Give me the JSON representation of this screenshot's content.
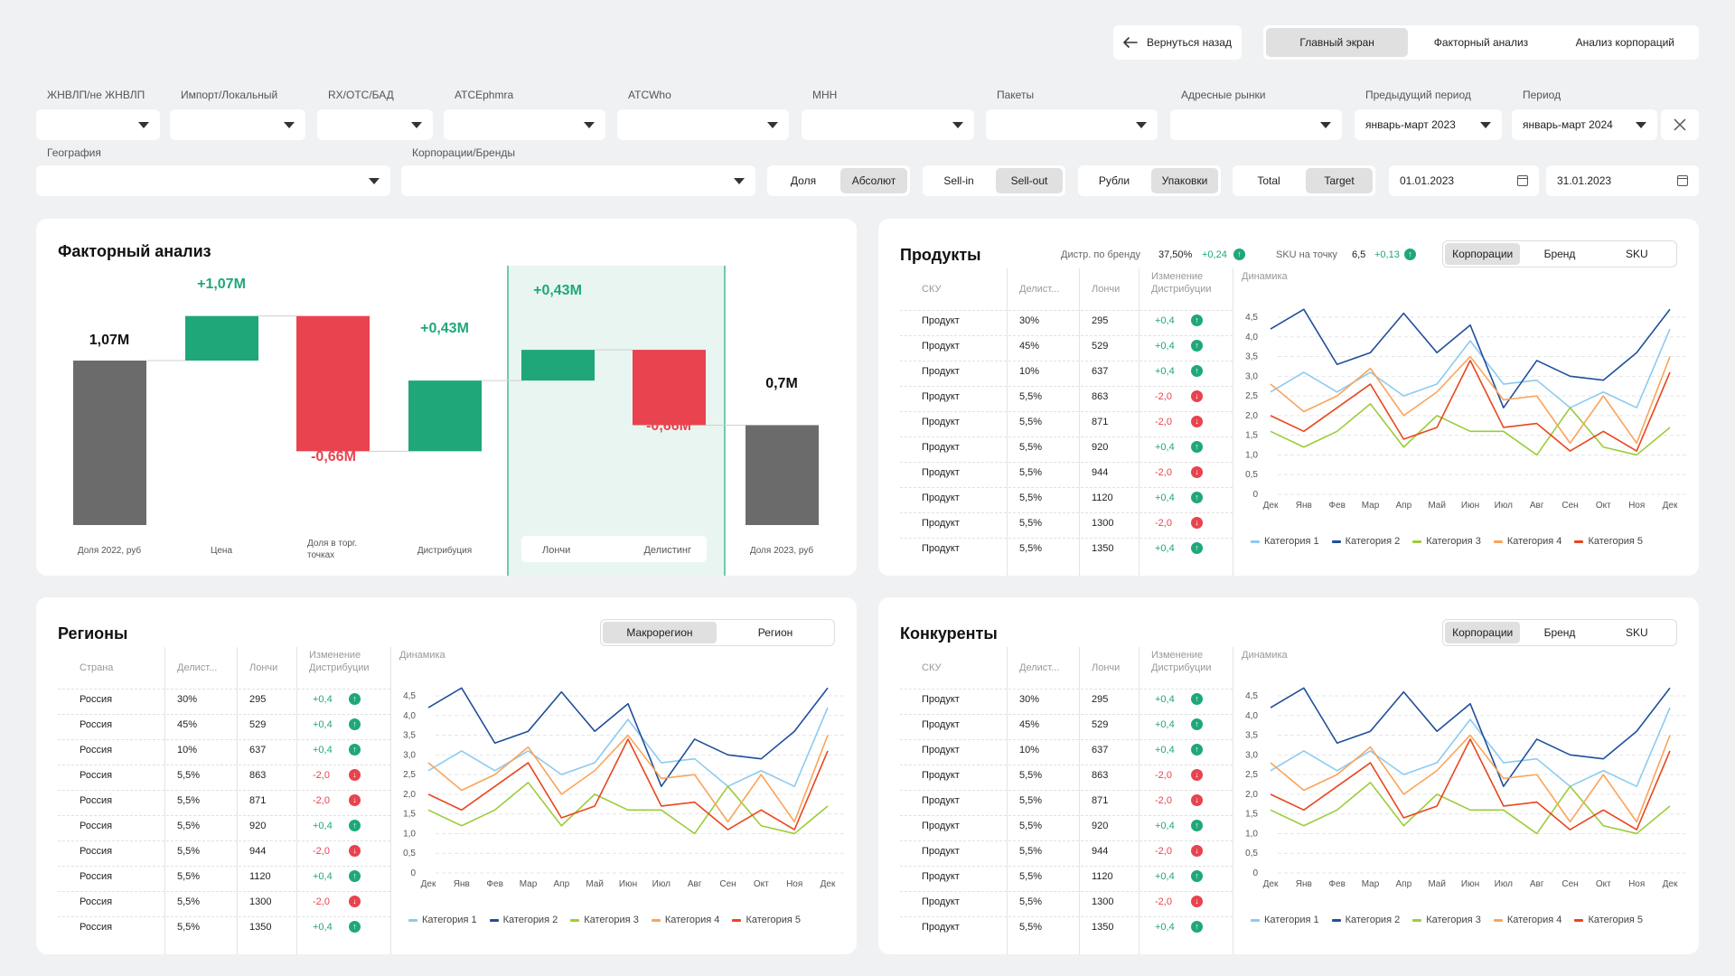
{
  "nav": {
    "back_label": "Вернуться назад",
    "tabs": [
      {
        "label": "Главный экран",
        "active": true
      },
      {
        "label": "Факторный анализ",
        "active": false
      },
      {
        "label": "Анализ корпораций",
        "active": false
      }
    ]
  },
  "filters": {
    "row1": [
      {
        "label": "ЖНВЛП/не ЖНВЛП",
        "value": ""
      },
      {
        "label": "Импорт/Локальный",
        "value": ""
      },
      {
        "label": "RX/OTC/БАД",
        "value": ""
      },
      {
        "label": "ATCEphmra",
        "value": ""
      },
      {
        "label": "ATCWho",
        "value": ""
      },
      {
        "label": "МНН",
        "value": ""
      },
      {
        "label": "Пакеты",
        "value": ""
      },
      {
        "label": "Адресные рынки",
        "value": ""
      },
      {
        "label": "Предыдущий период",
        "value": "январь-март 2023"
      },
      {
        "label": "Период",
        "value": "январь-март 2024"
      }
    ],
    "geography": {
      "label": "География",
      "value": ""
    },
    "corporations": {
      "label": "Корпорации/Бренды",
      "value": ""
    },
    "toggles": [
      {
        "options": [
          "Доля",
          "Абсолют"
        ],
        "active": 1
      },
      {
        "options": [
          "Sell-in",
          "Sell-out"
        ],
        "active": 1
      },
      {
        "options": [
          "Рубли",
          "Упаковки"
        ],
        "active": 1
      },
      {
        "options": [
          "Total",
          "Target"
        ],
        "active": 1
      }
    ],
    "date_from": "01.01.2023",
    "date_to": "31.01.2023",
    "close_label": "✕"
  },
  "colors": {
    "green": "#1fa77a",
    "red": "#e8434e",
    "gray_bar": "#6b6b6b",
    "highlight_bg": "#e9f5f0",
    "cat1": "#8ccbf0",
    "cat2": "#1f4f9a",
    "cat3": "#9ccc3a",
    "cat4": "#f9a55a",
    "cat5": "#e8461e"
  },
  "factor": {
    "title": "Факторный анализ",
    "chart_data": {
      "type": "bar",
      "categories": [
        "Доля 2022, руб",
        "Цена",
        "Доля в торг. точках",
        "Дистрибуция",
        "Лончи",
        "Делистинг",
        "Доля 2023, руб"
      ],
      "values": [
        1.07,
        1.07,
        -0.66,
        0.43,
        0.43,
        -0.66,
        0.7
      ],
      "data_labels": [
        "1,07M",
        "+1,07M",
        "-0,66M",
        "+0,43M",
        "+0,43M",
        "-0,66M",
        "0,7M"
      ]
    }
  },
  "products": {
    "title": "Продукты",
    "kpi1_label": "Дистр. по бренду",
    "kpi1_value": "37,50%",
    "kpi1_delta": "+0,24",
    "kpi2_label": "SKU на точку",
    "kpi2_value": "6,5",
    "kpi2_delta": "+0,13",
    "seg": [
      "Корпорации",
      "Бренд",
      "SKU"
    ],
    "headers": [
      "СКУ",
      "Делист...",
      "Лончи",
      "Изменение Дистрибуции",
      "Динамика"
    ],
    "rows": [
      [
        "Продукт",
        "30%",
        "295",
        "+0,4",
        "up"
      ],
      [
        "Продукт",
        "45%",
        "529",
        "+0,4",
        "up"
      ],
      [
        "Продукт",
        "10%",
        "637",
        "+0,4",
        "up"
      ],
      [
        "Продукт",
        "5,5%",
        "863",
        "-2,0",
        "down"
      ],
      [
        "Продукт",
        "5,5%",
        "871",
        "-2,0",
        "down"
      ],
      [
        "Продукт",
        "5,5%",
        "920",
        "+0,4",
        "up"
      ],
      [
        "Продукт",
        "5,5%",
        "944",
        "-2,0",
        "down"
      ],
      [
        "Продукт",
        "5,5%",
        "1120",
        "+0,4",
        "up"
      ],
      [
        "Продукт",
        "5,5%",
        "1300",
        "-2,0",
        "down"
      ],
      [
        "Продукт",
        "5,5%",
        "1350",
        "+0,4",
        "up"
      ]
    ]
  },
  "regions": {
    "title": "Регионы",
    "seg": [
      "Макрорегион",
      "Регион"
    ],
    "headers": [
      "Страна",
      "Делист...",
      "Лончи",
      "Изменение Дистрибуции",
      "Динамика"
    ],
    "rows": [
      [
        "Россия",
        "30%",
        "295",
        "+0,4",
        "up"
      ],
      [
        "Россия",
        "45%",
        "529",
        "+0,4",
        "up"
      ],
      [
        "Россия",
        "10%",
        "637",
        "+0,4",
        "up"
      ],
      [
        "Россия",
        "5,5%",
        "863",
        "-2,0",
        "down"
      ],
      [
        "Россия",
        "5,5%",
        "871",
        "-2,0",
        "down"
      ],
      [
        "Россия",
        "5,5%",
        "920",
        "+0,4",
        "up"
      ],
      [
        "Россия",
        "5,5%",
        "944",
        "-2,0",
        "down"
      ],
      [
        "Россия",
        "5,5%",
        "1120",
        "+0,4",
        "up"
      ],
      [
        "Россия",
        "5,5%",
        "1300",
        "-2,0",
        "down"
      ],
      [
        "Россия",
        "5,5%",
        "1350",
        "+0,4",
        "up"
      ]
    ]
  },
  "competitors": {
    "title": "Конкуренты",
    "seg": [
      "Корпорации",
      "Бренд",
      "SKU"
    ],
    "headers": [
      "СКУ",
      "Делист...",
      "Лончи",
      "Изменение Дистрибуции",
      "Динамика"
    ],
    "rows": [
      [
        "Продукт",
        "30%",
        "295",
        "+0,4",
        "up"
      ],
      [
        "Продукт",
        "45%",
        "529",
        "+0,4",
        "up"
      ],
      [
        "Продукт",
        "10%",
        "637",
        "+0,4",
        "up"
      ],
      [
        "Продукт",
        "5,5%",
        "863",
        "-2,0",
        "down"
      ],
      [
        "Продукт",
        "5,5%",
        "871",
        "-2,0",
        "down"
      ],
      [
        "Продукт",
        "5,5%",
        "920",
        "+0,4",
        "up"
      ],
      [
        "Продукт",
        "5,5%",
        "944",
        "-2,0",
        "down"
      ],
      [
        "Продукт",
        "5,5%",
        "1120",
        "+0,4",
        "up"
      ],
      [
        "Продукт",
        "5,5%",
        "1300",
        "-2,0",
        "down"
      ],
      [
        "Продукт",
        "5,5%",
        "1350",
        "+0,4",
        "up"
      ]
    ]
  },
  "chart_data": {
    "type": "line",
    "x": [
      "Дек",
      "Янв",
      "Фев",
      "Мар",
      "Апр",
      "Май",
      "Июн",
      "Июл",
      "Авг",
      "Сен",
      "Окт",
      "Ноя",
      "Дек"
    ],
    "y_ticks": [
      "0",
      "0,5",
      "1,0",
      "1,5",
      "2,0",
      "2,5",
      "3,0",
      "3,5",
      "4,0",
      "4,5"
    ],
    "ylim": [
      0,
      4.5
    ],
    "grid": true,
    "legend_position": "bottom",
    "series": [
      {
        "name": "Категория 1",
        "values": [
          2.6,
          3.1,
          2.6,
          3.1,
          2.5,
          2.8,
          3.9,
          2.8,
          2.9,
          2.2,
          2.6,
          2.2,
          4.2
        ]
      },
      {
        "name": "Категория 2",
        "values": [
          4.2,
          4.7,
          3.3,
          3.6,
          4.6,
          3.6,
          4.3,
          2.2,
          3.4,
          3.0,
          2.9,
          3.6,
          4.7
        ]
      },
      {
        "name": "Категория 3",
        "values": [
          1.6,
          1.2,
          1.6,
          2.3,
          1.2,
          2.0,
          1.6,
          1.6,
          1.0,
          2.2,
          1.2,
          1.0,
          1.7
        ]
      },
      {
        "name": "Категория 4",
        "values": [
          2.8,
          2.1,
          2.5,
          3.2,
          2.0,
          2.6,
          3.5,
          2.4,
          2.5,
          1.3,
          2.5,
          1.3,
          3.5
        ]
      },
      {
        "name": "Категория 5",
        "values": [
          2.0,
          1.6,
          2.2,
          2.8,
          1.4,
          1.7,
          3.4,
          1.7,
          1.8,
          1.1,
          1.6,
          1.1,
          3.1
        ]
      }
    ]
  }
}
